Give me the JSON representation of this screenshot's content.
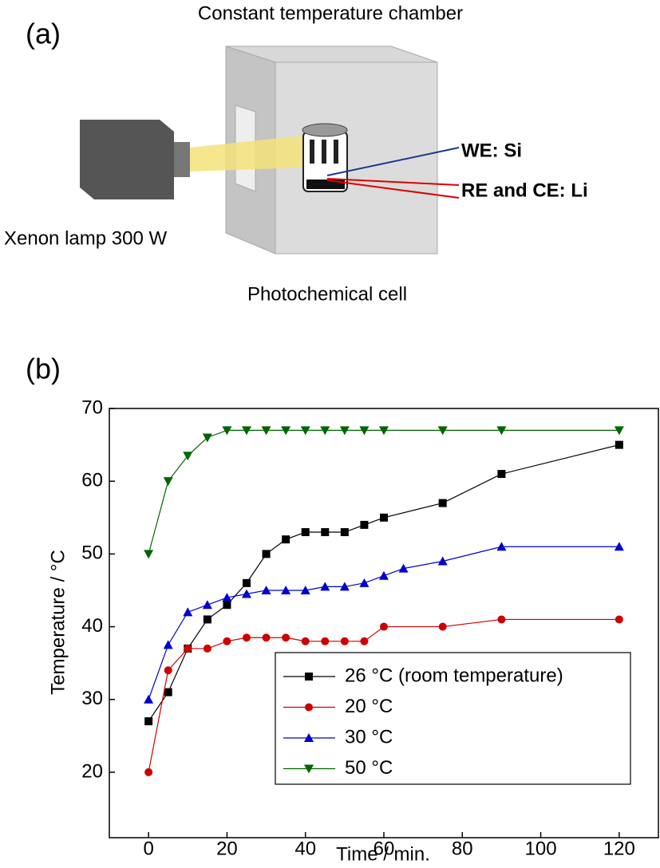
{
  "panel_a": {
    "label": "(a)",
    "chamber": "Constant temperature chamber",
    "we": "WE: Si",
    "re_ce": "RE and CE: Li",
    "lamp": "Xenon lamp 300 W",
    "cell": "Photochemical cell"
  },
  "chart_data": {
    "type": "line",
    "panel_label": "(b)",
    "x_label": "Time / min.",
    "y_label": "Temperature / °C",
    "xlim": [
      -10,
      130
    ],
    "xticks": [
      0,
      20,
      40,
      60,
      80,
      100,
      120
    ],
    "ylim": [
      11,
      70
    ],
    "yticks": [
      20,
      30,
      40,
      50,
      60,
      70
    ],
    "legend": "bottom-right",
    "series": [
      {
        "name": "26 °C (room temperature)",
        "color": "#000000",
        "marker": "square",
        "x": [
          0,
          5,
          10,
          15,
          20,
          25,
          30,
          35,
          40,
          45,
          50,
          55,
          60,
          75,
          90,
          120
        ],
        "values": [
          27,
          31,
          37,
          41,
          43,
          46,
          50,
          52,
          53,
          53,
          53,
          54,
          55,
          57,
          61,
          65
        ]
      },
      {
        "name": "20 °C",
        "color": "#cc0000",
        "marker": "circle",
        "x": [
          0,
          5,
          10,
          15,
          20,
          25,
          30,
          35,
          40,
          45,
          50,
          55,
          60,
          75,
          90,
          120
        ],
        "values": [
          20,
          34,
          37,
          37,
          38,
          38.5,
          38.5,
          38.5,
          38,
          38,
          38,
          38,
          40,
          40,
          41,
          41
        ]
      },
      {
        "name": "30 °C",
        "color": "#0000cc",
        "marker": "triangle-up",
        "x": [
          0,
          5,
          10,
          15,
          20,
          25,
          30,
          35,
          40,
          45,
          50,
          55,
          60,
          65,
          75,
          90,
          120
        ],
        "values": [
          30,
          37.5,
          42,
          43,
          44,
          44.5,
          45,
          45,
          45,
          45.5,
          45.5,
          46,
          47,
          48,
          49,
          51,
          51
        ]
      },
      {
        "name": "50 °C",
        "color": "#006600",
        "marker": "triangle-down",
        "x": [
          0,
          5,
          10,
          15,
          20,
          25,
          30,
          35,
          40,
          45,
          50,
          55,
          60,
          75,
          90,
          120
        ],
        "values": [
          50,
          60,
          63.5,
          66,
          67,
          67,
          67,
          67,
          67,
          67,
          67,
          67,
          67,
          67,
          67,
          67
        ]
      }
    ]
  }
}
